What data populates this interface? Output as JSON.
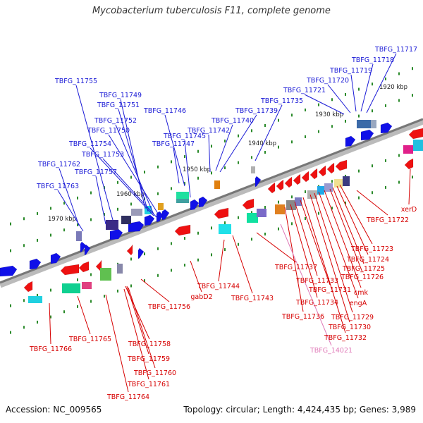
{
  "header": {
    "title": "Mycobacterium tuberculosis F11, complete genome"
  },
  "footer": {
    "accession": "Accession: NC_009565",
    "stats": "Topology: circular; Length: 4,424,435 bp; Genes: 3,989"
  },
  "colors": {
    "forward_label": "#1a1ad6",
    "reverse_label": "#d60000",
    "rna_label": "#e07ab8",
    "forward_gene": "#1010e8",
    "reverse_gene": "#ee1111",
    "backbone": "#888888",
    "tick": "#2a8a2a"
  },
  "kbp_marks": [
    "1920 kbp",
    "1930 kbp",
    "1940 kbp",
    "1950 kbp",
    "1960 kbp",
    "1970 kbp"
  ],
  "genes_forward": [
    "TBFG_11717",
    "TBFG_11718",
    "TBFG_11719",
    "TBFG_11720",
    "TBFG_11721",
    "TBFG_11735",
    "TBFG_11739",
    "TBFG_11740",
    "TBFG_11742",
    "TBFG_11745",
    "TBFG_11746",
    "TBFG_11747",
    "TBFG_11749",
    "TBFG_11751",
    "TBFG_11752",
    "TBFG_11750",
    "TBFG_11754",
    "TBFG_11753",
    "TBFG_11755",
    "TBFG_11757",
    "TBFG_11762",
    "TBFG_11763"
  ],
  "genes_reverse": [
    "xerD",
    "TBFG_11722",
    "TBFG_11723",
    "TBFG_11724",
    "TBFG_11725",
    "TBFG_11726",
    "cmk",
    "engA",
    "TBFG_11729",
    "TBFG_11730",
    "TBFG_11732",
    "TBFG_11731",
    "TBFG_11733",
    "TBFG_11734",
    "TBFG_11736",
    "TBFG_11737",
    "TBFG_11743",
    "TBFG_11744",
    "gabD2",
    "TBFG_11756",
    "TBFG_11758",
    "TBFG_11759",
    "TBFG_11760",
    "TBFG_11761",
    "TBFG_11764",
    "TBFG_11765",
    "TBFG_11766"
  ],
  "genes_rna": [
    "TBFG_14021"
  ]
}
